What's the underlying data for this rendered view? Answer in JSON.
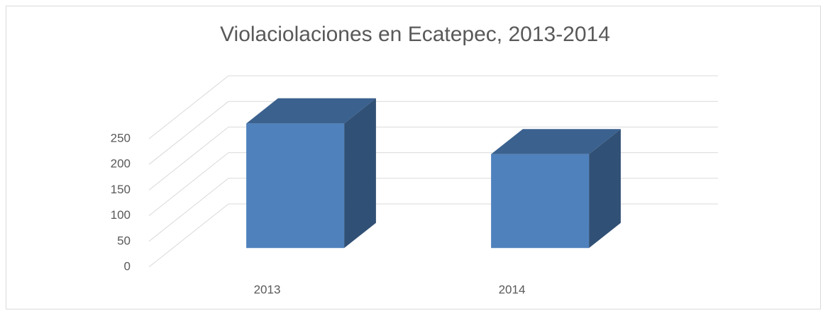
{
  "chart_data": {
    "type": "bar3d",
    "title": "Violaciolaciones en Ecatepec, 2013-2014",
    "categories": [
      "2013",
      "2014"
    ],
    "values": [
      243,
      183
    ],
    "color": "#4f81bd",
    "ylim": [
      0,
      250
    ],
    "yticks": [
      0,
      50,
      100,
      150,
      200,
      250
    ],
    "grid": true
  }
}
